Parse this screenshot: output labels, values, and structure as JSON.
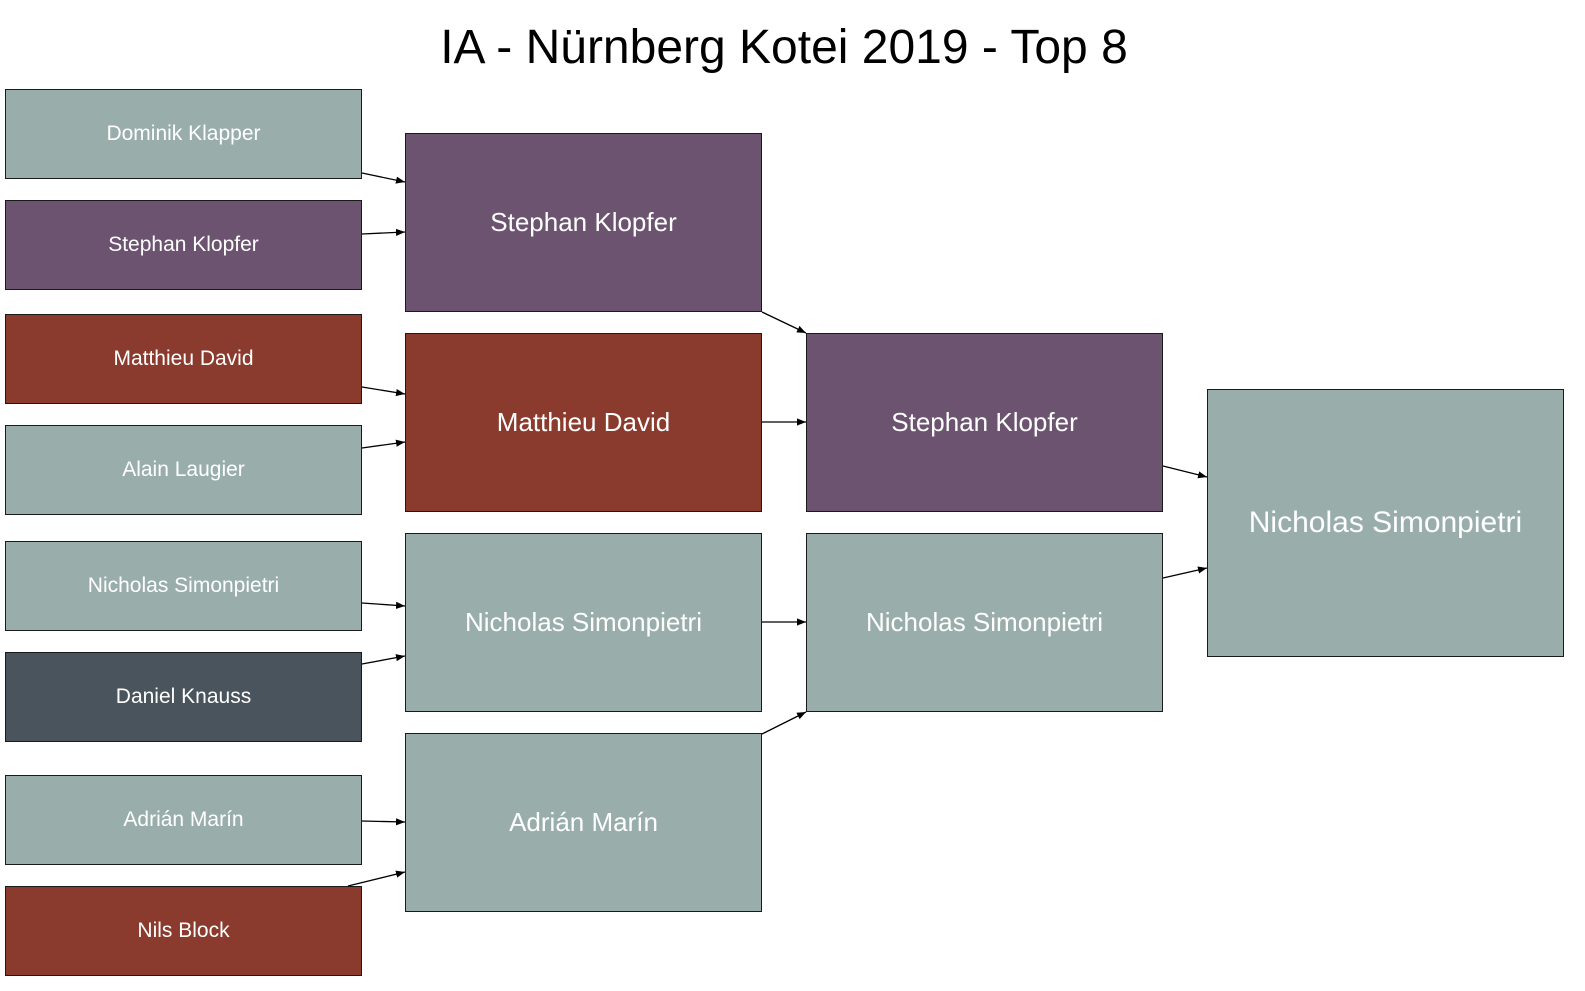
{
  "title": "IA - Nürnberg Kotei 2019 - Top 8",
  "colors": {
    "grey": "#99aeaa",
    "purple": "#6c5470",
    "red": "#8a3b2d",
    "dark": "#4a545d",
    "edge": "#000000"
  },
  "rounds": {
    "round1": [
      {
        "name": "Dominik Klapper",
        "color": "grey"
      },
      {
        "name": "Stephan Klopfer",
        "color": "purple"
      },
      {
        "name": "Matthieu David",
        "color": "red"
      },
      {
        "name": "Alain Laugier",
        "color": "grey"
      },
      {
        "name": "Nicholas Simonpietri",
        "color": "grey"
      },
      {
        "name": "Daniel Knauss",
        "color": "dark"
      },
      {
        "name": "Adrián Marín",
        "color": "grey"
      },
      {
        "name": "Nils Block",
        "color": "red"
      }
    ],
    "quarterfinals": [
      {
        "name": "Stephan Klopfer",
        "color": "purple"
      },
      {
        "name": "Matthieu David",
        "color": "red"
      },
      {
        "name": "Nicholas Simonpietri",
        "color": "grey"
      },
      {
        "name": "Adrián Marín",
        "color": "grey"
      }
    ],
    "semifinals": [
      {
        "name": "Stephan Klopfer",
        "color": "purple"
      },
      {
        "name": "Nicholas Simonpietri",
        "color": "grey"
      }
    ],
    "final": [
      {
        "name": "Nicholas Simonpietri",
        "color": "grey"
      }
    ]
  }
}
